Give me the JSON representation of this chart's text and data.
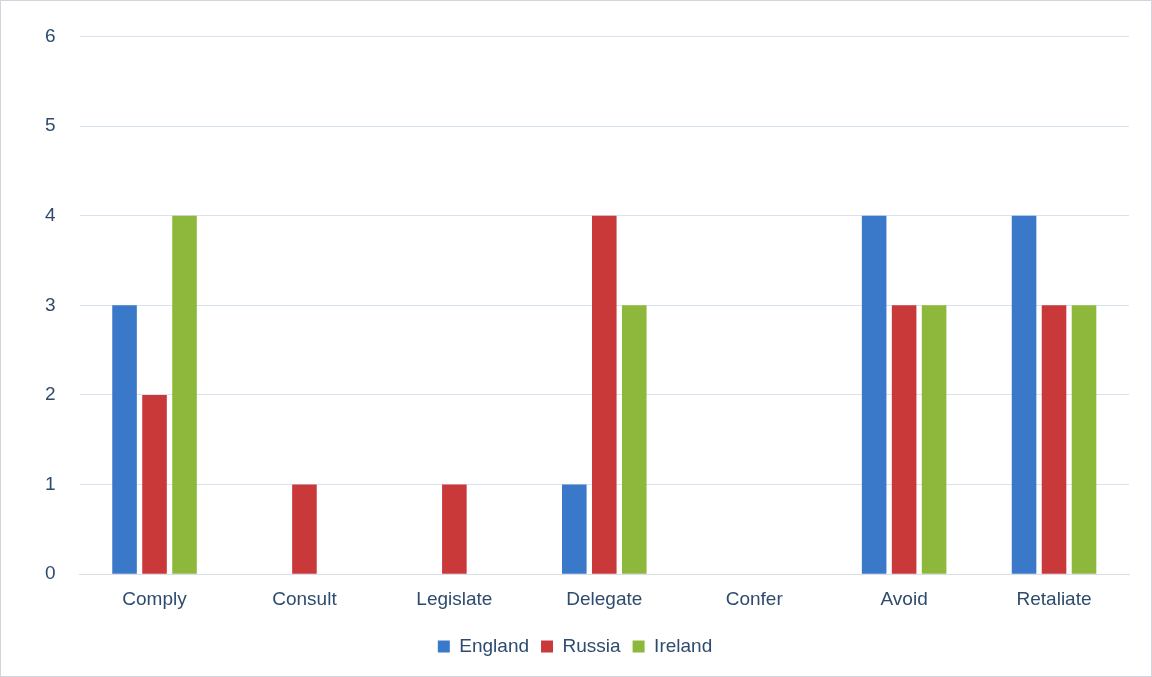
{
  "chart_data": {
    "type": "bar",
    "categories": [
      "Comply",
      "Consult",
      "Legislate",
      "Delegate",
      "Confer",
      "Avoid",
      "Retaliate"
    ],
    "series": [
      {
        "name": "England",
        "color": "#3a78c9",
        "values": [
          3,
          0,
          0,
          1,
          0,
          4,
          4
        ]
      },
      {
        "name": "Russia",
        "color": "#c9393a",
        "values": [
          2,
          1,
          1,
          4,
          0,
          3,
          3
        ]
      },
      {
        "name": "Ireland",
        "color": "#8db83c",
        "values": [
          4,
          0,
          0,
          3,
          0,
          3,
          3
        ]
      }
    ],
    "ylim": [
      0,
      6
    ],
    "yticks": [
      0,
      1,
      2,
      3,
      4,
      5,
      6
    ],
    "grid": "y",
    "legend": "bottom"
  }
}
